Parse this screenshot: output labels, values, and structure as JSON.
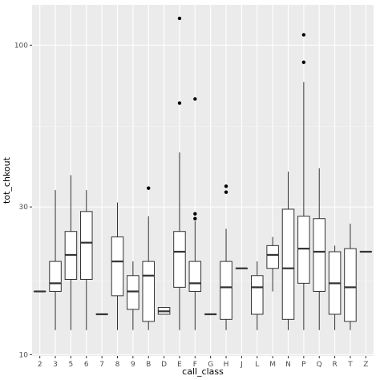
{
  "chart_data": {
    "type": "boxplot",
    "xlabel": "call_class",
    "ylabel": "tot_chkout",
    "y_scale": "log10",
    "ylim": [
      9.9,
      135
    ],
    "y_ticks": [
      10,
      30,
      100
    ],
    "y_tick_labels": [
      "10",
      "30",
      "100"
    ],
    "grid": true,
    "categories": [
      "2",
      "3",
      "5",
      "6",
      "7",
      "8",
      "9",
      "B",
      "D",
      "E",
      "F",
      "G",
      "H",
      "J",
      "L",
      "M",
      "N",
      "P",
      "Q",
      "R",
      "T",
      "Z"
    ],
    "boxes": [
      {
        "category": "2",
        "min": 16,
        "q1": 16,
        "median": 16,
        "q3": 16,
        "max": 16,
        "outliers": []
      },
      {
        "category": "3",
        "min": 12,
        "q1": 16,
        "median": 17,
        "q3": 20,
        "max": 34,
        "outliers": []
      },
      {
        "category": "5",
        "min": 12,
        "q1": 17.5,
        "median": 21,
        "q3": 25,
        "max": 38,
        "outliers": []
      },
      {
        "category": "6",
        "min": 12,
        "q1": 17.5,
        "median": 23,
        "q3": 29,
        "max": 34,
        "outliers": []
      },
      {
        "category": "7",
        "min": 13.5,
        "q1": 13.5,
        "median": 13.5,
        "q3": 13.5,
        "max": 13.5,
        "outliers": []
      },
      {
        "category": "8",
        "min": 12,
        "q1": 15.5,
        "median": 20,
        "q3": 24,
        "max": 31,
        "outliers": []
      },
      {
        "category": "9",
        "min": 12,
        "q1": 14,
        "median": 16,
        "q3": 18,
        "max": 20,
        "outliers": []
      },
      {
        "category": "B",
        "min": 12,
        "q1": 12.8,
        "median": 18,
        "q3": 20,
        "max": 28,
        "outliers": [
          34.5
        ]
      },
      {
        "category": "D",
        "min": 13.5,
        "q1": 13.5,
        "median": 13.8,
        "q3": 14.2,
        "max": 14.2,
        "outliers": []
      },
      {
        "category": "E",
        "min": 12,
        "q1": 16.5,
        "median": 21.5,
        "q3": 25,
        "max": 45,
        "outliers": [
          65,
          122
        ]
      },
      {
        "category": "F",
        "min": 12,
        "q1": 16,
        "median": 17,
        "q3": 20,
        "max": 27,
        "outliers": [
          27.5,
          28.5,
          67
        ]
      },
      {
        "category": "G",
        "min": 13.5,
        "q1": 13.5,
        "median": 13.5,
        "q3": 13.5,
        "max": 13.5,
        "outliers": []
      },
      {
        "category": "H",
        "min": 12,
        "q1": 13,
        "median": 16.5,
        "q3": 20,
        "max": 25.5,
        "outliers": [
          33.5,
          35
        ]
      },
      {
        "category": "J",
        "min": 19,
        "q1": 19,
        "median": 19,
        "q3": 19,
        "max": 19,
        "outliers": []
      },
      {
        "category": "L",
        "min": 12,
        "q1": 13.5,
        "median": 16.5,
        "q3": 18,
        "max": 20,
        "outliers": []
      },
      {
        "category": "M",
        "min": 16,
        "q1": 19,
        "median": 21,
        "q3": 22.5,
        "max": 24,
        "outliers": []
      },
      {
        "category": "N",
        "min": 12,
        "q1": 13,
        "median": 19,
        "q3": 29.5,
        "max": 39,
        "outliers": []
      },
      {
        "category": "P",
        "min": 12,
        "q1": 17,
        "median": 22,
        "q3": 28,
        "max": 76,
        "outliers": [
          88,
          108
        ]
      },
      {
        "category": "Q",
        "min": 12,
        "q1": 16,
        "median": 21.5,
        "q3": 27.5,
        "max": 40,
        "outliers": []
      },
      {
        "category": "R",
        "min": 12,
        "q1": 13.5,
        "median": 17,
        "q3": 21.5,
        "max": 22.5,
        "outliers": []
      },
      {
        "category": "T",
        "min": 12,
        "q1": 12.8,
        "median": 16.5,
        "q3": 22,
        "max": 26.5,
        "outliers": []
      },
      {
        "category": "Z",
        "min": 21.5,
        "q1": 21.5,
        "median": 21.5,
        "q3": 21.5,
        "max": 21.5,
        "outliers": []
      }
    ],
    "colors": {
      "panel_bg": "#ebebeb",
      "grid_major": "#ffffff",
      "box_fill": "#ffffff",
      "box_line": "#333333",
      "outlier": "#000000"
    }
  }
}
